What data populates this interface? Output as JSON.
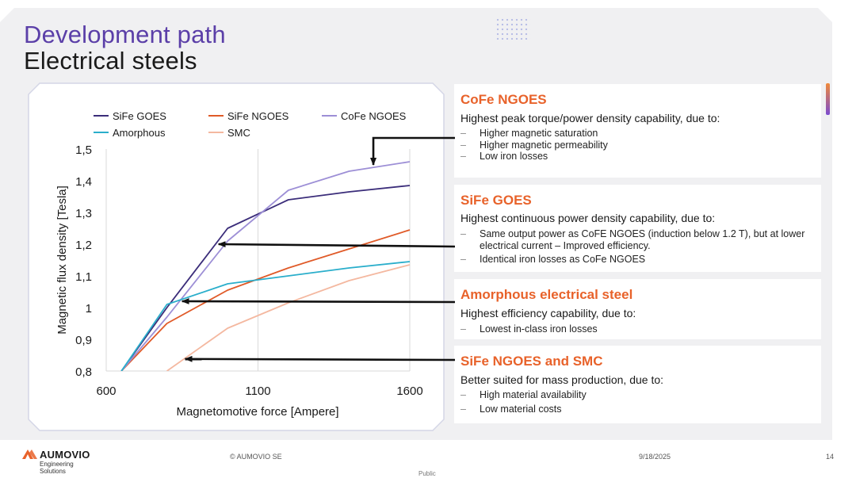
{
  "header": {
    "title_line1": "Development path",
    "title_line2": "Electrical steels"
  },
  "chart_data": {
    "type": "line",
    "xlabel": "Magnetomotive force [Ampere]",
    "ylabel": "Magnetic flux density [Tesla]",
    "xlim": [
      600,
      1600
    ],
    "ylim": [
      0.8,
      1.5
    ],
    "x_ticks": [
      600,
      1100,
      1600
    ],
    "x_tick_labels": [
      "600",
      "1100",
      "1600"
    ],
    "y_ticks": [
      0.8,
      0.9,
      1.0,
      1.1,
      1.2,
      1.3,
      1.4,
      1.5
    ],
    "y_tick_labels": [
      "0,8",
      "0,9",
      "1",
      "1,1",
      "1,2",
      "1,3",
      "1,4",
      "1,5"
    ],
    "grid": "vertical",
    "legend_position": "top",
    "series": [
      {
        "name": "SiFe GOES",
        "color": "#3b2d7a",
        "x": [
          650,
          800,
          1000,
          1200,
          1400,
          1600
        ],
        "y": [
          0.8,
          1.0,
          1.25,
          1.34,
          1.365,
          1.385
        ]
      },
      {
        "name": "SiFe NGOES",
        "color": "#e05a28",
        "x": [
          650,
          800,
          1000,
          1200,
          1400,
          1600
        ],
        "y": [
          0.8,
          0.95,
          1.055,
          1.125,
          1.185,
          1.245
        ]
      },
      {
        "name": "CoFe NGOES",
        "color": "#9d8fd6",
        "x": [
          650,
          800,
          1000,
          1200,
          1400,
          1600
        ],
        "y": [
          0.8,
          0.97,
          1.21,
          1.37,
          1.43,
          1.46
        ]
      },
      {
        "name": "Amorphous",
        "color": "#2aaecb",
        "x": [
          650,
          800,
          1000,
          1200,
          1400,
          1600
        ],
        "y": [
          0.8,
          1.01,
          1.075,
          1.1,
          1.125,
          1.145
        ]
      },
      {
        "name": "SMC",
        "color": "#f4b8a0",
        "x": [
          800,
          1000,
          1200,
          1400,
          1600
        ],
        "y": [
          0.8,
          0.935,
          1.015,
          1.085,
          1.135
        ]
      }
    ],
    "arrow_targets": [
      {
        "to": "CoFe NGOES",
        "x": 1480,
        "y": 1.45
      },
      {
        "to": "SiFe GOES",
        "x": 970,
        "y": 1.2
      },
      {
        "to": "Amorphous electrical steel",
        "x": 850,
        "y": 1.02
      },
      {
        "to": "SiFe NGOES and SMC",
        "x": 860,
        "y": 0.838
      }
    ]
  },
  "cards": [
    {
      "title": "CoFe NGOES",
      "description": "Highest peak torque/power density capability, due to:",
      "bullets": [
        "Higher magnetic saturation",
        "Higher magnetic permeability",
        "Low iron losses"
      ]
    },
    {
      "title": "SiFe GOES",
      "description": "Highest continuous power density capability, due to:",
      "bullets": [
        "Same output power as CoFE NGOES (induction below 1.2 T), but at lower electrical current – Improved efficiency.",
        "Identical iron losses as CoFe NGOES"
      ]
    },
    {
      "title": "Amorphous electrical steel",
      "description": "Highest efficiency capability, due to:",
      "bullets": [
        "Lowest in-class iron losses"
      ]
    },
    {
      "title": "SiFe NGOES and SMC",
      "description": "Better suited for mass production, due to:",
      "bullets": [
        "High material availability",
        "Low material costs"
      ]
    }
  ],
  "footer": {
    "logo_text": "AUMOVIO",
    "logo_sub1": "Engineering",
    "logo_sub2": "Solutions",
    "copyright": "© AUMOVIO SE",
    "date": "9/18/2025",
    "page_number": "14",
    "classification": "Public"
  }
}
